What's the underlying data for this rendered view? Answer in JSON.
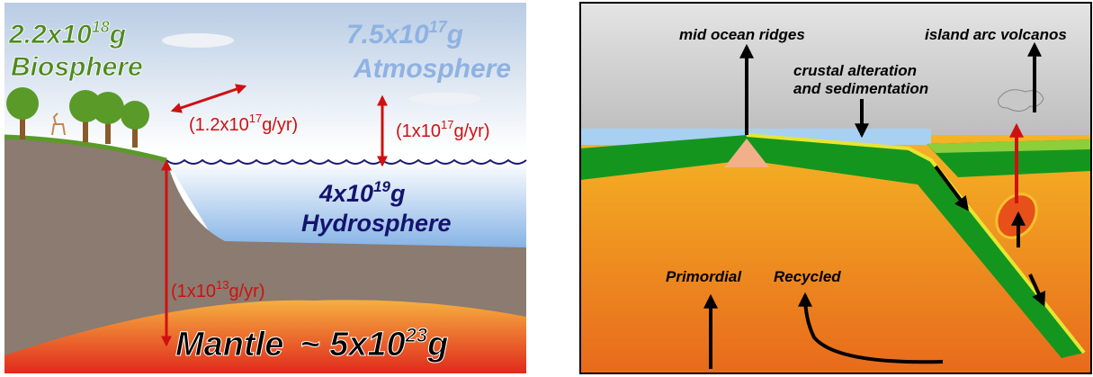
{
  "left_panel": {
    "biosphere": {
      "mass": {
        "base": "2.2x10",
        "exp": "18",
        "unit": "g"
      },
      "label": "Biosphere"
    },
    "atmosphere": {
      "mass": {
        "base": "7.5x10",
        "exp": "17",
        "unit": "g"
      },
      "label": "Atmosphere"
    },
    "hydrosphere": {
      "mass": {
        "base": "4x10",
        "exp": "19",
        "unit": "g"
      },
      "label": "Hydrosphere"
    },
    "mantle": {
      "label": "Mantle",
      "mass": {
        "base": "~ 5x10",
        "exp": "23",
        "unit": "g"
      }
    },
    "fluxes": [
      {
        "base": "(1.2x10",
        "exp": "17",
        "unit": "g/yr)"
      },
      {
        "base": "(1x10",
        "exp": "17",
        "unit": "g/yr)"
      },
      {
        "base": "(1x10",
        "exp": "13",
        "unit": "g/yr)"
      }
    ]
  },
  "right_panel": {
    "mid_ocean_ridges": "mid ocean ridges",
    "island_arc_volcanos": "island arc volcanos",
    "crustal_alteration": [
      "crustal alteration",
      "and sedimentation"
    ],
    "primordial": "Primordial",
    "recycled": "Recycled"
  }
}
